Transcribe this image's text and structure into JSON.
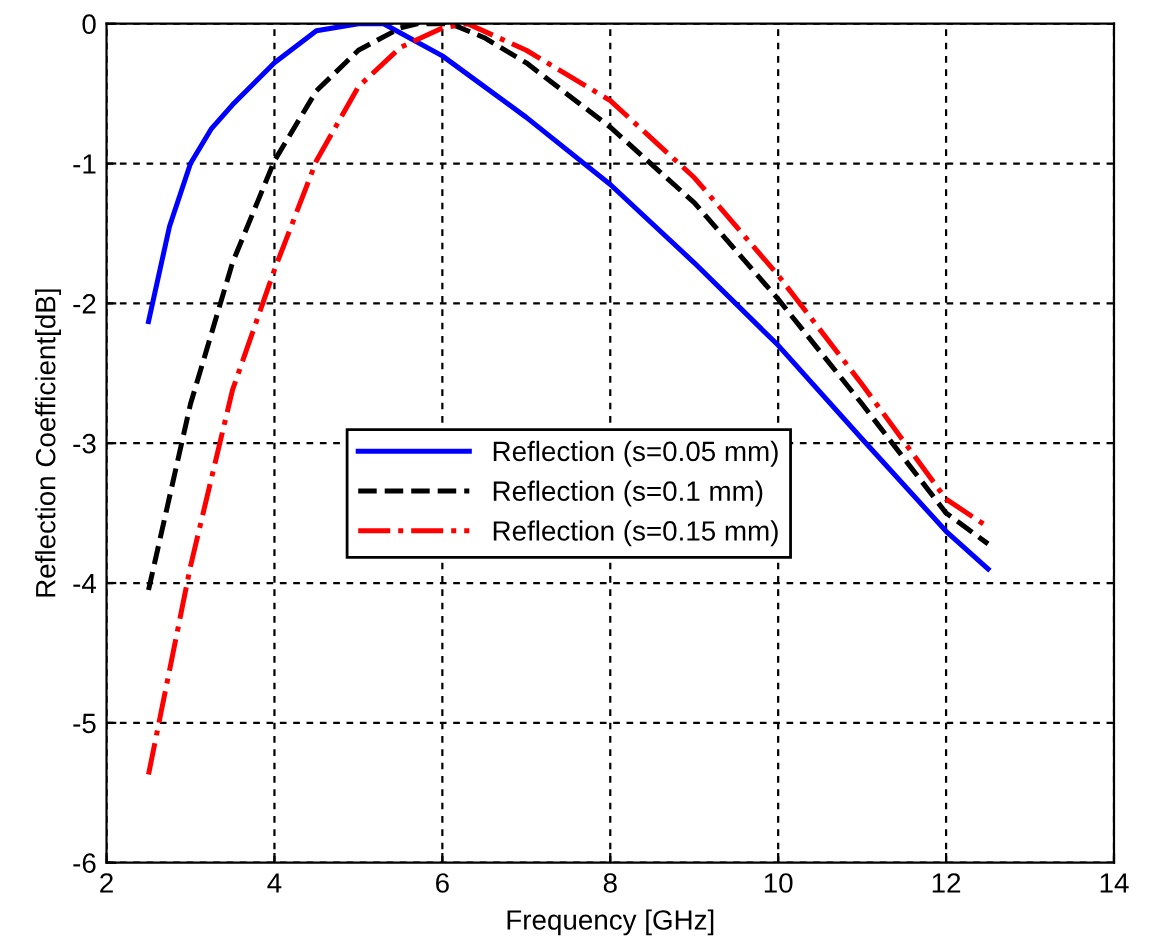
{
  "chart_data": {
    "type": "line",
    "xlabel": "Frequency [GHz]",
    "ylabel": "Reflection Coefficient[dB]",
    "xlim": [
      2,
      14
    ],
    "ylim": [
      -6,
      0
    ],
    "xticks": [
      2,
      4,
      6,
      8,
      10,
      12,
      14
    ],
    "yticks": [
      -6,
      -5,
      -4,
      -3,
      -2,
      -1,
      0
    ],
    "grid": true,
    "legend": "center",
    "series": [
      {
        "name": "Reflection (s=0.05 mm)",
        "color": "#0000ff",
        "line_style": "solid",
        "x": [
          2.5,
          2.75,
          3,
          3.25,
          3.5,
          4,
          4.5,
          5,
          5.3,
          6,
          7,
          8,
          9,
          10,
          11,
          12,
          12.5
        ],
        "values": [
          -2.13,
          -1.45,
          -1.0,
          -0.75,
          -0.58,
          -0.28,
          -0.05,
          0,
          0,
          -0.23,
          -0.67,
          -1.15,
          -1.71,
          -2.3,
          -2.97,
          -3.63,
          -3.9
        ]
      },
      {
        "name": "Reflection (s=0.1 mm)",
        "color": "#000000",
        "line_style": "dashed",
        "x": [
          2.5,
          3,
          3.5,
          4,
          4.5,
          5,
          5.5,
          5.7,
          6.1,
          6.5,
          7,
          8,
          9,
          10,
          11,
          12,
          12.5
        ],
        "values": [
          -4.05,
          -2.72,
          -1.71,
          -0.98,
          -0.48,
          -0.19,
          -0.03,
          0,
          0,
          -0.1,
          -0.28,
          -0.74,
          -1.28,
          -1.97,
          -2.72,
          -3.5,
          -3.72
        ]
      },
      {
        "name": "Reflection (s=0.15 mm)",
        "color": "#ff0000",
        "line_style": "dashdot",
        "x": [
          2.5,
          3,
          3.5,
          4,
          4.5,
          5,
          5.5,
          6,
          6.3,
          7,
          8,
          9,
          10,
          11,
          12,
          12.5
        ],
        "values": [
          -5.37,
          -3.88,
          -2.62,
          -1.76,
          -0.98,
          -0.45,
          -0.17,
          -0.03,
          0,
          -0.19,
          -0.55,
          -1.1,
          -1.8,
          -2.58,
          -3.4,
          -3.6
        ]
      }
    ]
  }
}
